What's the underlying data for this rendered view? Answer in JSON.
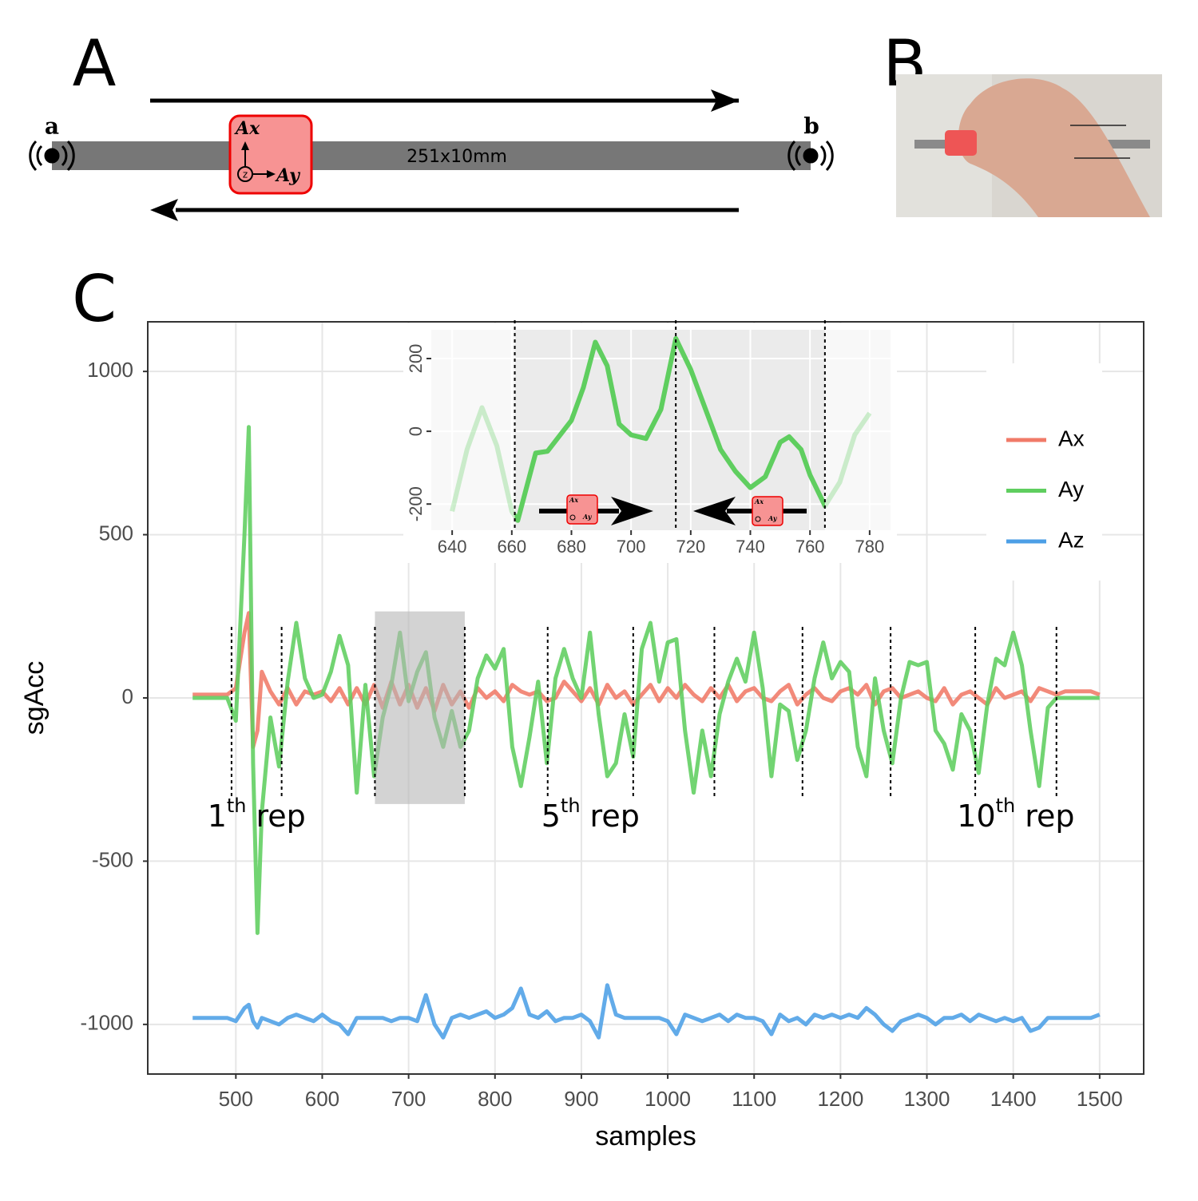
{
  "panel_labels": [
    "A",
    "B",
    "C"
  ],
  "diagram": {
    "end_a": "a",
    "end_b": "b",
    "sensor_x": "Ax",
    "sensor_y": "Ay",
    "sensor_z": "z",
    "dimension": "251x10mm"
  },
  "chart_data": [
    {
      "type": "line",
      "xlabel": "samples",
      "ylabel": "sgAcc",
      "x": [
        450,
        460,
        470,
        480,
        490,
        500,
        510,
        515,
        520,
        525,
        530,
        540,
        550,
        560,
        570,
        580,
        590,
        600,
        610,
        620,
        630,
        640,
        650,
        660,
        670,
        680,
        690,
        700,
        710,
        720,
        730,
        740,
        750,
        760,
        770,
        780,
        790,
        800,
        810,
        820,
        830,
        840,
        850,
        860,
        870,
        880,
        890,
        900,
        910,
        920,
        930,
        940,
        950,
        960,
        970,
        980,
        990,
        1000,
        1010,
        1020,
        1030,
        1040,
        1050,
        1060,
        1070,
        1080,
        1090,
        1100,
        1110,
        1120,
        1130,
        1140,
        1150,
        1160,
        1170,
        1180,
        1190,
        1200,
        1210,
        1220,
        1230,
        1240,
        1250,
        1260,
        1270,
        1280,
        1290,
        1300,
        1310,
        1320,
        1330,
        1340,
        1350,
        1360,
        1370,
        1380,
        1390,
        1400,
        1410,
        1420,
        1430,
        1440,
        1450,
        1460,
        1470,
        1480,
        1490,
        1500
      ],
      "series": [
        {
          "name": "Ax",
          "color": "#f07a68",
          "values": [
            10,
            10,
            10,
            10,
            10,
            30,
            200,
            260,
            -150,
            -100,
            80,
            20,
            -20,
            30,
            -20,
            20,
            10,
            20,
            -10,
            30,
            -20,
            30,
            -20,
            40,
            -30,
            50,
            -20,
            40,
            -30,
            30,
            -40,
            40,
            -20,
            20,
            -30,
            30,
            0,
            20,
            -10,
            40,
            20,
            10,
            20,
            -10,
            0,
            50,
            20,
            -10,
            30,
            -20,
            40,
            0,
            20,
            -20,
            10,
            40,
            -10,
            30,
            0,
            40,
            10,
            -10,
            30,
            0,
            40,
            -10,
            20,
            30,
            0,
            -10,
            20,
            40,
            -20,
            10,
            30,
            0,
            -10,
            20,
            30,
            10,
            40,
            -20,
            20,
            30,
            0,
            10,
            20,
            0,
            -10,
            30,
            -20,
            10,
            20,
            0,
            -20,
            30,
            0,
            10,
            20,
            -10,
            30,
            20,
            10,
            20,
            20,
            20,
            20,
            10
          ]
        },
        {
          "name": "Ay",
          "color": "#5fce5f",
          "values": [
            0,
            0,
            0,
            0,
            0,
            -70,
            500,
            830,
            -200,
            -720,
            -350,
            -60,
            -210,
            50,
            230,
            60,
            0,
            10,
            80,
            190,
            100,
            -290,
            40,
            -240,
            -60,
            40,
            200,
            -10,
            80,
            140,
            -60,
            -150,
            -40,
            -150,
            -100,
            60,
            130,
            90,
            150,
            -150,
            -270,
            -120,
            50,
            -200,
            60,
            150,
            60,
            0,
            200,
            -50,
            -240,
            -200,
            -50,
            -180,
            150,
            230,
            50,
            170,
            180,
            -100,
            -290,
            -100,
            -240,
            -50,
            50,
            120,
            50,
            200,
            30,
            -240,
            -20,
            -40,
            -190,
            -100,
            60,
            170,
            60,
            110,
            80,
            -150,
            -240,
            60,
            -100,
            -200,
            0,
            110,
            100,
            110,
            -100,
            -140,
            -220,
            -50,
            -100,
            -230,
            -20,
            120,
            100,
            200,
            100,
            -100,
            -270,
            -30,
            0,
            0,
            0,
            0,
            0,
            0
          ]
        },
        {
          "name": "Az",
          "color": "#4c9fe6",
          "values": [
            -980,
            -980,
            -980,
            -980,
            -980,
            -990,
            -950,
            -940,
            -990,
            -1010,
            -980,
            -990,
            -1000,
            -980,
            -970,
            -980,
            -990,
            -970,
            -990,
            -1000,
            -1030,
            -980,
            -980,
            -980,
            -980,
            -990,
            -980,
            -980,
            -990,
            -910,
            -1000,
            -1040,
            -980,
            -970,
            -980,
            -970,
            -960,
            -980,
            -970,
            -950,
            -890,
            -970,
            -980,
            -960,
            -990,
            -980,
            -980,
            -970,
            -990,
            -1040,
            -880,
            -970,
            -980,
            -980,
            -980,
            -980,
            -980,
            -990,
            -1030,
            -970,
            -980,
            -990,
            -980,
            -970,
            -990,
            -970,
            -980,
            -980,
            -990,
            -1030,
            -970,
            -990,
            -980,
            -1000,
            -970,
            -980,
            -970,
            -980,
            -970,
            -980,
            -950,
            -970,
            -1000,
            -1020,
            -990,
            -980,
            -970,
            -980,
            -1000,
            -980,
            -980,
            -970,
            -990,
            -970,
            -980,
            -990,
            -980,
            -990,
            -980,
            -1020,
            -1010,
            -980,
            -980,
            -980,
            -980,
            -980,
            -980,
            -970
          ]
        }
      ],
      "xlim": [
        398,
        1551
      ],
      "ylim": [
        -1152,
        1152
      ],
      "xticks": [
        500,
        600,
        700,
        800,
        900,
        1000,
        1100,
        1200,
        1300,
        1400,
        1500
      ],
      "yticks": [
        -1000,
        -500,
        0,
        500,
        1000
      ],
      "grid": true,
      "legend": "right",
      "rep_boundaries": [
        495,
        553,
        661,
        765,
        861,
        960,
        1054,
        1156,
        1258,
        1356,
        1450
      ],
      "rep_labels": [
        {
          "n": 1,
          "suffix": "th",
          "word": "rep"
        },
        {
          "n": 5,
          "suffix": "th",
          "word": "rep"
        },
        {
          "n": 10,
          "suffix": "th",
          "word": "rep"
        }
      ],
      "highlight": {
        "xlim": [
          661,
          765
        ],
        "ylim": [
          -325,
          265
        ]
      }
    },
    {
      "type": "line",
      "x": [
        640,
        645,
        650,
        655,
        660,
        662,
        668,
        672,
        680,
        684,
        688,
        692,
        696,
        700,
        705,
        710,
        715,
        720,
        725,
        730,
        735,
        740,
        745,
        750,
        753,
        757,
        760,
        765,
        770,
        775,
        780
      ],
      "series": [
        {
          "color": "#5fce5f",
          "values": [
            -220,
            -50,
            65,
            -40,
            -220,
            -245,
            -60,
            -55,
            30,
            120,
            245,
            180,
            20,
            -10,
            -20,
            60,
            255,
            170,
            60,
            -50,
            -110,
            -155,
            -125,
            -30,
            -15,
            -50,
            -120,
            -205,
            -140,
            -10,
            50
          ]
        }
      ],
      "xlim": [
        633,
        787
      ],
      "ylim": [
        -272,
        279
      ],
      "xticks": [
        640,
        660,
        680,
        700,
        720,
        740,
        760,
        780
      ],
      "yticks": [
        -200,
        0,
        200
      ],
      "grid": true,
      "active_range": [
        661,
        765
      ],
      "dividers": [
        661,
        715,
        765
      ]
    }
  ]
}
